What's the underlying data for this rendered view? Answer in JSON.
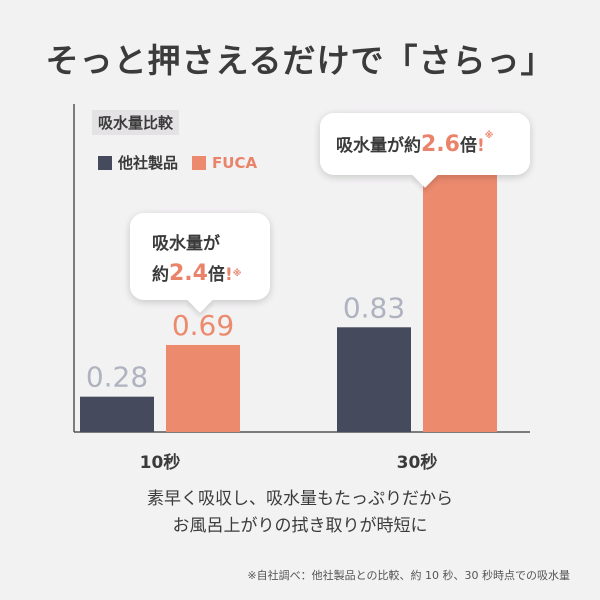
{
  "headline": "そっと押さえるだけで「さらっ」",
  "chart_data": {
    "type": "bar",
    "title": "吸水量比較",
    "categories": [
      "10秒",
      "30秒"
    ],
    "series": [
      {
        "name": "他社製品",
        "values": [
          0.28,
          0.83
        ],
        "color": "#454b5c",
        "label_color": "#aeb3bf"
      },
      {
        "name": "FUCA",
        "values": [
          0.69,
          2.15
        ],
        "color": "#ec8a6e",
        "label_color": "#ec8a6e"
      }
    ],
    "ylim": [
      0,
      2.6
    ],
    "legend": "top-left"
  },
  "callouts": [
    {
      "line1": "吸水量が",
      "prefix": "約",
      "value": "2.4",
      "suffix": "倍",
      "exclaim": "!",
      "mark": "※"
    },
    {
      "line1": "吸水量が",
      "prefix": "約",
      "value": "2.6",
      "suffix": "倍",
      "exclaim": "!",
      "mark": "※"
    }
  ],
  "description": [
    "素早く吸収し、吸水量もたっぷりだから",
    "お風呂上がりの拭き取りが時短に"
  ],
  "footnote": "※自社調べ：他社製品との比較、約 10 秒、30 秒時点での吸水量"
}
